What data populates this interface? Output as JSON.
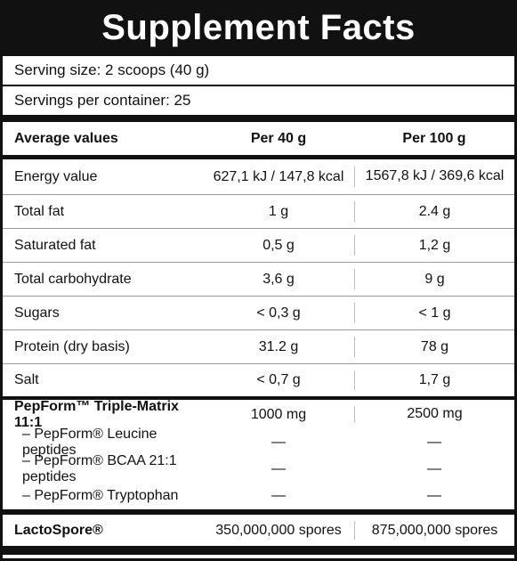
{
  "title": "Supplement Facts",
  "serving_size": "Serving size: 2 scoops (40 g)",
  "servings_per_container": "Servings per container: 25",
  "table": {
    "header": [
      "Average values",
      "Per 40 g",
      "Per 100 g"
    ],
    "rows": [
      [
        "Energy value",
        "627,1 kJ / 147,8 kcal",
        "1567,8 kJ / 369,6 kcal"
      ],
      [
        "Total fat",
        "1 g",
        "2.4 g"
      ],
      [
        "Saturated fat",
        "0,5 g",
        "1,2 g"
      ],
      [
        "Total carbohydrate",
        "3,6 g",
        "9 g"
      ],
      [
        "Sugars",
        "< 0,3 g",
        "< 1 g"
      ],
      [
        "Protein (dry basis)",
        "31.2 g",
        "78 g"
      ],
      [
        "Salt",
        "< 0,7 g",
        "1,7 g"
      ],
      [
        "PepForm™ Triple-Matrix 11:1",
        "1000 mg",
        "2500 mg"
      ],
      [
        "– PepForm® Leucine peptides",
        "—",
        "—"
      ],
      [
        "– PepForm® BCAA 21:1 peptides",
        "—",
        "—"
      ],
      [
        "– PepForm® Tryptophan",
        "—",
        "—"
      ],
      [
        "LactoSpore®",
        "350,000,000 spores",
        "875,000,000 spores"
      ]
    ]
  }
}
